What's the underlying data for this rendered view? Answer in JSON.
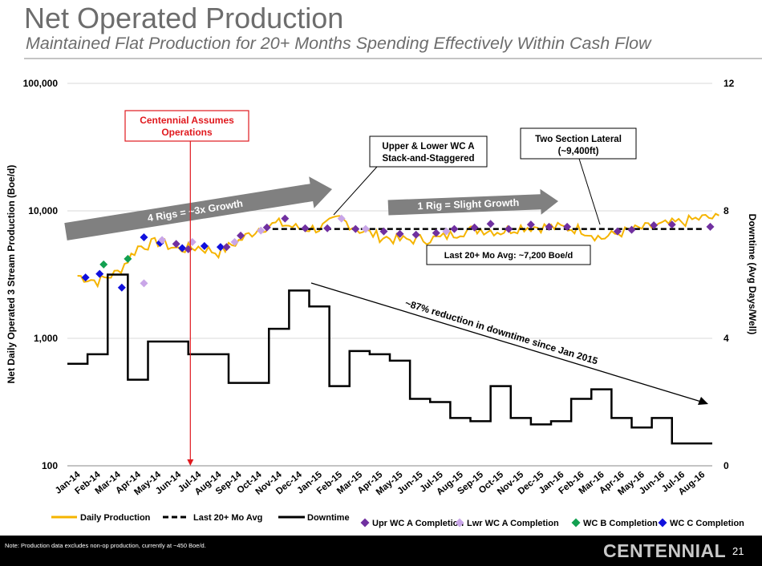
{
  "slide": {
    "title": "Net Operated Production",
    "subtitle": "Maintained Flat Production for 20+ Months Spending Effectively Within Cash Flow",
    "footnote": "Note: Production data excludes non-op production, currently at ~450 Boe/d.",
    "brand": "CENTENNIAL",
    "page_number": "21"
  },
  "colors": {
    "daily_production": "#f5b400",
    "last_avg": "#000000",
    "downtime": "#000000",
    "upr_wc_a": "#7030a0",
    "lwr_wc_a": "#c9a6e8",
    "wc_b": "#12a050",
    "wc_c": "#1010dd",
    "arrow": "#808080",
    "centennial_red": "#e0191e"
  },
  "chart_data": {
    "type": "line",
    "x": [
      "Jan-14",
      "Feb-14",
      "Mar-14",
      "Apr-14",
      "May-14",
      "Jun-14",
      "Jul-14",
      "Aug-14",
      "Sep-14",
      "Oct-14",
      "Nov-14",
      "Dec-14",
      "Jan-15",
      "Feb-15",
      "Mar-15",
      "Apr-15",
      "May-15",
      "Jun-15",
      "Jul-15",
      "Aug-15",
      "Sep-15",
      "Oct-15",
      "Nov-15",
      "Dec-15",
      "Jan-16",
      "Feb-16",
      "Mar-16",
      "Apr-16",
      "May-16",
      "Jun-16",
      "Jul-16",
      "Aug-16"
    ],
    "y_left": {
      "label": "Net Daily Operated 3 Stream Production (Boe/d)",
      "scale": "log",
      "range": [
        100,
        100000
      ],
      "ticks": [
        "100",
        "1,000",
        "10,000",
        "100,000"
      ]
    },
    "y_right": {
      "label": "Downtime (Avg Days/Well)",
      "range": [
        0,
        12
      ],
      "ticks": [
        "0",
        "4",
        "8",
        "12"
      ]
    },
    "grid": "horizontal",
    "legend": {
      "placement": "bottom",
      "entries": [
        "Daily Production",
        "Last 20+ Mo Avg",
        "Downtime",
        "Upr WC A Completion",
        "Lwr WC A Completion",
        "WC B Completion",
        "WC C Completion"
      ]
    },
    "series": [
      {
        "name": "Daily Production",
        "axis": "left",
        "values": [
          3100,
          2800,
          3300,
          5200,
          5700,
          5000,
          5200,
          4700,
          5800,
          7300,
          8000,
          7300,
          7300,
          8700,
          7100,
          6300,
          5900,
          6000,
          6100,
          6900,
          7200,
          6900,
          7500,
          7500,
          7400,
          7200,
          6100,
          6800,
          7300,
          7700,
          8200,
          8800
        ]
      },
      {
        "name": "Last 20+ Mo Avg",
        "axis": "left",
        "value": 7200,
        "x_start": "Nov-14",
        "x_end": "Aug-16"
      },
      {
        "name": "Downtime",
        "axis": "right",
        "values": [
          3.2,
          3.5,
          6.0,
          2.7,
          3.9,
          3.9,
          3.5,
          3.5,
          2.6,
          2.6,
          4.3,
          5.5,
          5.0,
          2.5,
          3.6,
          3.5,
          3.3,
          2.1,
          2.0,
          1.5,
          1.4,
          2.5,
          1.5,
          1.3,
          1.4,
          2.1,
          2.4,
          1.5,
          1.2,
          1.5,
          0.7,
          0.7
        ]
      },
      {
        "name": "Upr WC A Completion",
        "axis": "left",
        "points": [
          [
            4.9,
            5500
          ],
          [
            5.5,
            5000
          ],
          [
            7.4,
            5200
          ],
          [
            8.1,
            6400
          ],
          [
            9.4,
            7400
          ],
          [
            10.3,
            8700
          ],
          [
            11.3,
            7300
          ],
          [
            12.4,
            7300
          ],
          [
            13.8,
            7200
          ],
          [
            15.2,
            6900
          ],
          [
            16.0,
            6600
          ],
          [
            16.8,
            6500
          ],
          [
            17.8,
            6700
          ],
          [
            18.7,
            7200
          ],
          [
            19.7,
            7400
          ],
          [
            20.5,
            7900
          ],
          [
            21.4,
            7200
          ],
          [
            22.5,
            7800
          ],
          [
            23.4,
            7500
          ],
          [
            24.3,
            7500
          ],
          [
            26.8,
            6900
          ],
          [
            27.5,
            7100
          ],
          [
            28.6,
            7700
          ],
          [
            29.5,
            7800
          ],
          [
            31.4,
            7500
          ]
        ]
      },
      {
        "name": "Lwr WC A Completion",
        "axis": "left",
        "points": [
          [
            3.3,
            2700
          ],
          [
            4.2,
            5900
          ],
          [
            5.7,
            5700
          ],
          [
            7.8,
            5700
          ],
          [
            9.1,
            7000
          ],
          [
            13.1,
            8700
          ],
          [
            14.3,
            7200
          ],
          [
            18.3,
            6900
          ]
        ]
      },
      {
        "name": "WC B Completion",
        "axis": "left",
        "points": [
          [
            1.3,
            3800
          ],
          [
            2.5,
            4200
          ]
        ]
      },
      {
        "name": "WC C Completion",
        "axis": "left",
        "points": [
          [
            0.4,
            3000
          ],
          [
            1.1,
            3200
          ],
          [
            2.2,
            2500
          ],
          [
            3.3,
            6200
          ],
          [
            4.1,
            5600
          ],
          [
            5.2,
            5100
          ],
          [
            6.3,
            5300
          ],
          [
            7.1,
            5200
          ]
        ]
      }
    ],
    "annotations": {
      "centennial": "Centennial Assumes Operations",
      "upper_lower": "Upper & Lower WC A Stack-and-Staggered",
      "two_section": "Two Section Lateral (~9,400ft)",
      "rigs4": "4 Rigs = ~3x Growth",
      "rig1": "1 Rig = Slight Growth",
      "avg_label": "Last 20+ Mo Avg: ~7,200 Boe/d",
      "reduction": "~87% reduction in downtime since Jan 2015"
    }
  }
}
